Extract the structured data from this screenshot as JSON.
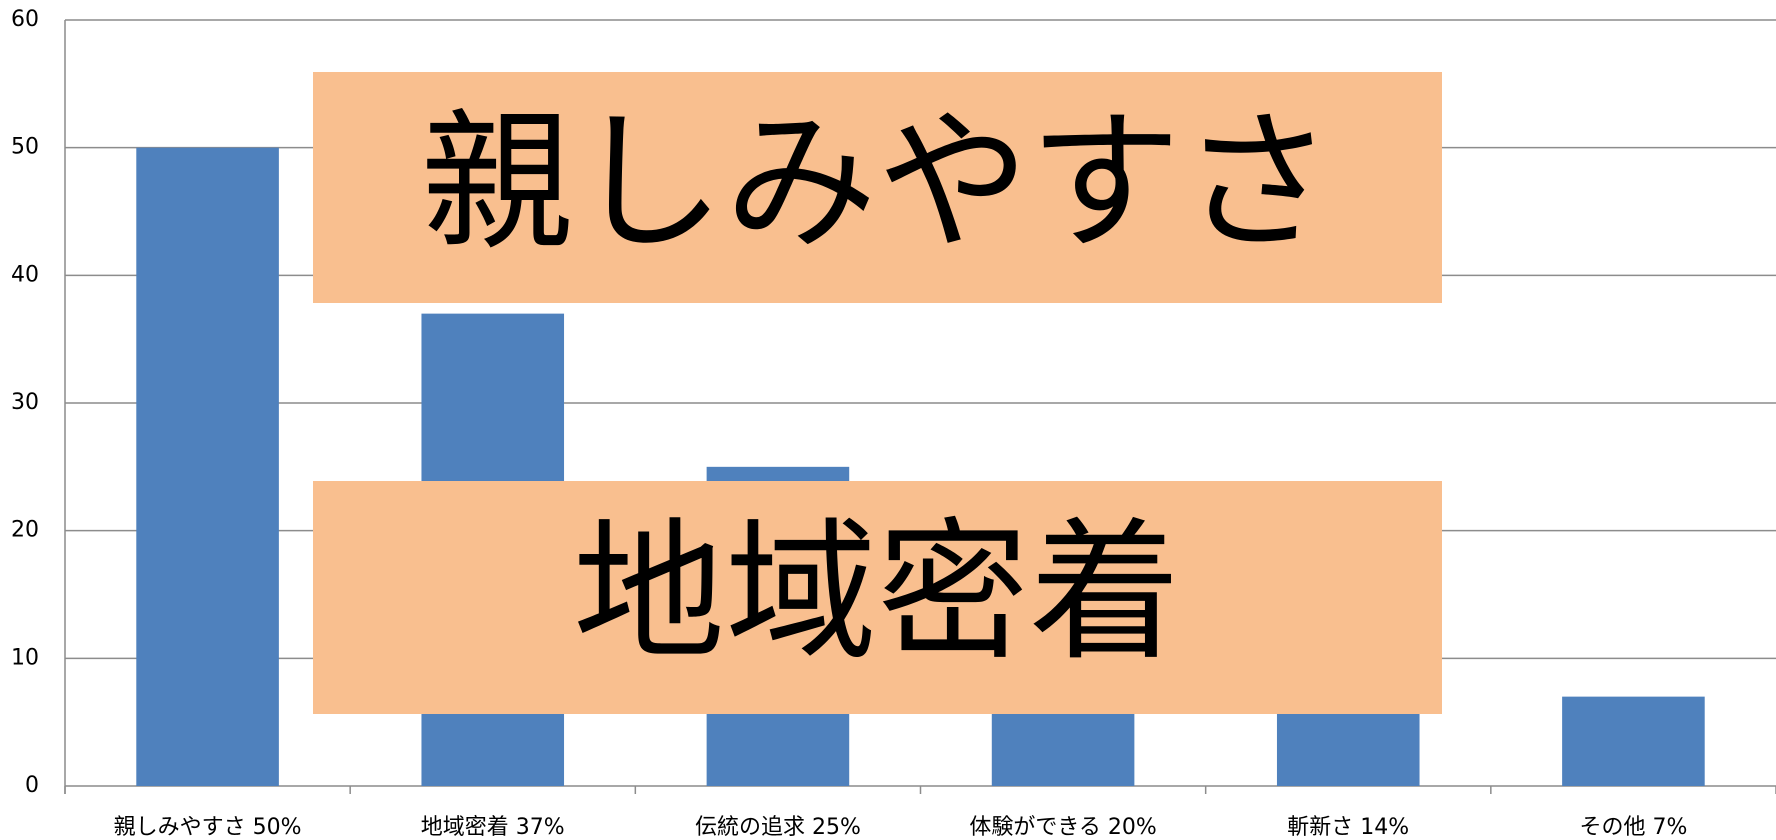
{
  "chart_data": {
    "type": "bar",
    "categories": [
      "親しみやすさ 50%",
      "地域密着 37%",
      "伝統の追求 25%",
      "体験ができる 20%",
      "斬新さ 14%",
      "その他 7%"
    ],
    "values": [
      50,
      37,
      25,
      20,
      14,
      7
    ],
    "color": "#4f81bd",
    "ylim": [
      0,
      60
    ],
    "yticks": [
      0,
      10,
      20,
      30,
      40,
      50,
      60
    ],
    "grid": true,
    "annotations": [
      "親しみやすさ",
      "地域密着"
    ],
    "annotation_color": "#f9bf8f"
  }
}
